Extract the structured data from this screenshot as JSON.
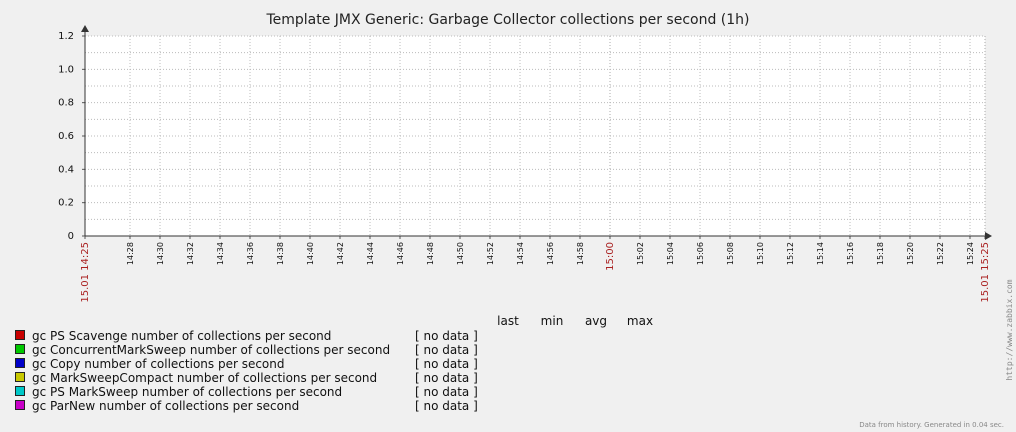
{
  "chart_data": {
    "type": "line",
    "title": "Template JMX Generic: Garbage Collector collections per second (1h)",
    "ylim": [
      0,
      1.2
    ],
    "y_ticks": [
      "0",
      "0.2",
      "0.4",
      "0.6",
      "0.8",
      "1.0",
      "1.2"
    ],
    "x_ticks": [
      "15.01 14:25",
      "14:28",
      "14:30",
      "14:32",
      "14:34",
      "14:36",
      "14:38",
      "14:40",
      "14:42",
      "14:44",
      "14:46",
      "14:48",
      "14:50",
      "14:52",
      "14:54",
      "14:56",
      "14:58",
      "15:00",
      "15:02",
      "15:04",
      "15:06",
      "15:08",
      "15:10",
      "15:12",
      "15:14",
      "15:16",
      "15:18",
      "15:20",
      "15:22",
      "15:24",
      "15.01 15:25"
    ],
    "x_major_ticks": [
      "15.01 14:25",
      "15:00",
      "15.01 15:25"
    ],
    "grid": true,
    "series": [
      {
        "name": "gc PS Scavenge number of collections per second",
        "color": "#c80000",
        "value": "[ no data ]"
      },
      {
        "name": "gc ConcurrentMarkSweep number of collections per second",
        "color": "#00c800",
        "value": "[ no data ]"
      },
      {
        "name": "gc Copy number of collections per second",
        "color": "#0000c8",
        "value": "[ no data ]"
      },
      {
        "name": "gc MarkSweepCompact number of collections per second",
        "color": "#c8c800",
        "value": "[ no data ]"
      },
      {
        "name": "gc PS MarkSweep number of collections per second",
        "color": "#00c8c8",
        "value": "[ no data ]"
      },
      {
        "name": "gc ParNew number of collections per second",
        "color": "#c800c8",
        "value": "[ no data ]"
      }
    ],
    "legend_columns": [
      "last",
      "min",
      "avg",
      "max"
    ]
  },
  "watermark": "http://www.zabbix.com",
  "footer": "Data from history. Generated in 0.04 sec."
}
